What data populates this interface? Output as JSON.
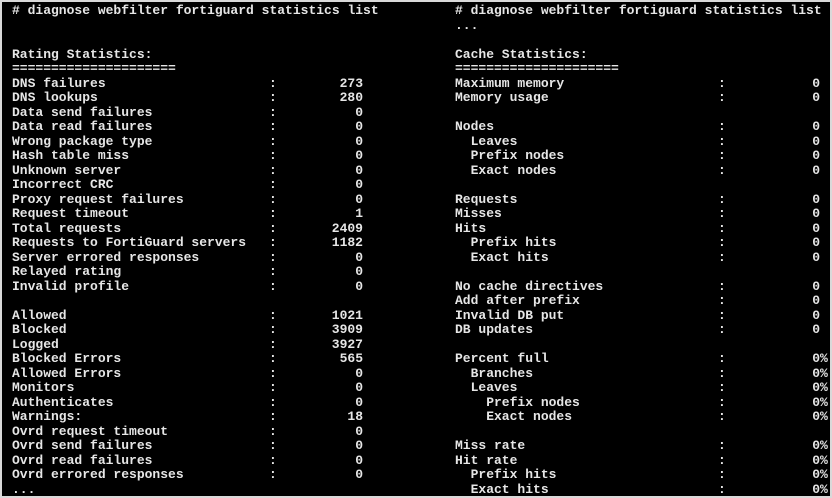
{
  "colors": {
    "background": "#000000",
    "text": "#e6e6e6",
    "border": "#d9d9d9"
  },
  "terminal": {
    "left_panel": {
      "command": "# diagnose webfilter fortiguard statistics list",
      "section_title": "Rating Statistics:",
      "lines": [
        {
          "type": "blank"
        },
        {
          "type": "blank"
        },
        {
          "type": "text",
          "text": "Rating Statistics:"
        },
        {
          "type": "text",
          "text": "====================="
        },
        {
          "type": "kv",
          "label": "DNS failures",
          "value": "273"
        },
        {
          "type": "kv",
          "label": "DNS lookups",
          "value": "280"
        },
        {
          "type": "kv",
          "label": "Data send failures",
          "value": "0"
        },
        {
          "type": "kv",
          "label": "Data read failures",
          "value": "0"
        },
        {
          "type": "kv",
          "label": "Wrong package type",
          "value": "0"
        },
        {
          "type": "kv",
          "label": "Hash table miss",
          "value": "0"
        },
        {
          "type": "kv",
          "label": "Unknown server",
          "value": "0"
        },
        {
          "type": "kv",
          "label": "Incorrect CRC",
          "value": "0"
        },
        {
          "type": "kv",
          "label": "Proxy request failures",
          "value": "0"
        },
        {
          "type": "kv",
          "label": "Request timeout",
          "value": "1"
        },
        {
          "type": "kv",
          "label": "Total requests",
          "value": "2409"
        },
        {
          "type": "kv",
          "label": "Requests to FortiGuard servers",
          "value": "1182"
        },
        {
          "type": "kv",
          "label": "Server errored responses",
          "value": "0"
        },
        {
          "type": "kv",
          "label": "Relayed rating",
          "value": "0"
        },
        {
          "type": "kv",
          "label": "Invalid profile",
          "value": "0"
        },
        {
          "type": "blank"
        },
        {
          "type": "kv",
          "label": "Allowed",
          "value": "1021"
        },
        {
          "type": "kv",
          "label": "Blocked",
          "value": "3909"
        },
        {
          "type": "kv",
          "label": "Logged",
          "value": "3927"
        },
        {
          "type": "kv",
          "label": "Blocked Errors",
          "value": "565"
        },
        {
          "type": "kv",
          "label": "Allowed Errors",
          "value": "0"
        },
        {
          "type": "kv",
          "label": "Monitors",
          "value": "0"
        },
        {
          "type": "kv",
          "label": "Authenticates",
          "value": "0"
        },
        {
          "type": "kv",
          "label": "Warnings:",
          "value": "18"
        },
        {
          "type": "kv",
          "label": "Ovrd request timeout",
          "value": "0"
        },
        {
          "type": "kv",
          "label": "Ovrd send failures",
          "value": "0"
        },
        {
          "type": "kv",
          "label": "Ovrd read failures",
          "value": "0"
        },
        {
          "type": "kv",
          "label": "Ovrd errored responses",
          "value": "0"
        },
        {
          "type": "text",
          "text": "..."
        }
      ]
    },
    "right_panel": {
      "command": "# diagnose webfilter fortiguard statistics list",
      "section_title": "Cache Statistics:",
      "lines": [
        {
          "type": "text",
          "text": "..."
        },
        {
          "type": "blank"
        },
        {
          "type": "text",
          "text": "Cache Statistics:"
        },
        {
          "type": "text",
          "text": "====================="
        },
        {
          "type": "kv",
          "label": "Maximum memory",
          "value": "0"
        },
        {
          "type": "kv",
          "label": "Memory usage",
          "value": "0"
        },
        {
          "type": "blank"
        },
        {
          "type": "kv",
          "label": "Nodes",
          "value": "0"
        },
        {
          "type": "kv",
          "label": "  Leaves",
          "value": "0"
        },
        {
          "type": "kv",
          "label": "  Prefix nodes",
          "value": "0"
        },
        {
          "type": "kv",
          "label": "  Exact nodes",
          "value": "0"
        },
        {
          "type": "blank"
        },
        {
          "type": "kv",
          "label": "Requests",
          "value": "0"
        },
        {
          "type": "kv",
          "label": "Misses",
          "value": "0"
        },
        {
          "type": "kv",
          "label": "Hits",
          "value": "0"
        },
        {
          "type": "kv",
          "label": "  Prefix hits",
          "value": "0"
        },
        {
          "type": "kv",
          "label": "  Exact hits",
          "value": "0"
        },
        {
          "type": "blank"
        },
        {
          "type": "kv",
          "label": "No cache directives",
          "value": "0"
        },
        {
          "type": "kv",
          "label": "Add after prefix",
          "value": "0"
        },
        {
          "type": "kv",
          "label": "Invalid DB put",
          "value": "0"
        },
        {
          "type": "kv",
          "label": "DB updates",
          "value": "0"
        },
        {
          "type": "blank"
        },
        {
          "type": "kv",
          "label": "Percent full",
          "value": "0%"
        },
        {
          "type": "kv",
          "label": "  Branches",
          "value": "0%"
        },
        {
          "type": "kv",
          "label": "  Leaves",
          "value": "0%"
        },
        {
          "type": "kv",
          "label": "    Prefix nodes",
          "value": "0%"
        },
        {
          "type": "kv",
          "label": "    Exact nodes",
          "value": "0%"
        },
        {
          "type": "blank"
        },
        {
          "type": "kv",
          "label": "Miss rate",
          "value": "0%"
        },
        {
          "type": "kv",
          "label": "Hit rate",
          "value": "0%"
        },
        {
          "type": "kv",
          "label": "  Prefix hits",
          "value": "0%"
        },
        {
          "type": "kv",
          "label": "  Exact hits",
          "value": "0%"
        }
      ]
    }
  }
}
